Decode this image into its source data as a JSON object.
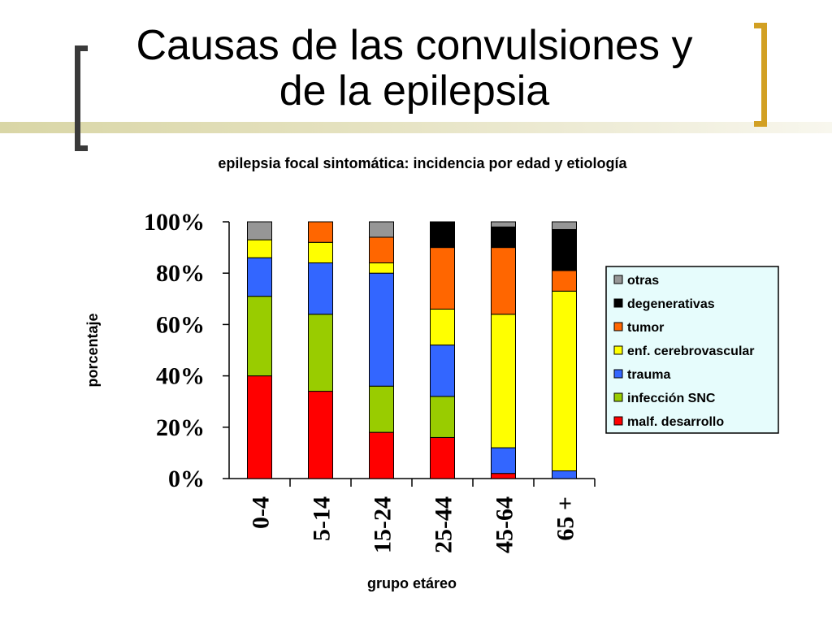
{
  "slide": {
    "title_line1": "Causas de las convulsiones y",
    "title_line2": "de la epilepsia"
  },
  "colors": {
    "left_bracket": "#3a3a3a",
    "right_bracket": "#d2a023",
    "legend_background": "#e6fcfc"
  },
  "chart_data": {
    "type": "bar",
    "stacked": true,
    "title": "epilepsia focal sintomática: incidencia por edad y etiología",
    "xlabel": "grupo etáreo",
    "ylabel": "porcentaje",
    "ylim": [
      0,
      100
    ],
    "yticks": [
      "0%",
      "20%",
      "40%",
      "60%",
      "80%",
      "100%"
    ],
    "categories": [
      "0-4",
      "5-14",
      "15-24",
      "25-44",
      "45-64",
      "65 +"
    ],
    "legend_position": "right",
    "series": [
      {
        "name": "malf. desarrollo",
        "color": "#ff0000",
        "values": [
          40,
          34,
          18,
          16,
          2,
          0
        ]
      },
      {
        "name": "infección SNC",
        "color": "#99cc00",
        "values": [
          31,
          30,
          18,
          16,
          0,
          0
        ]
      },
      {
        "name": "trauma",
        "color": "#3366ff",
        "values": [
          15,
          20,
          44,
          20,
          10,
          3
        ]
      },
      {
        "name": "enf. cerebrovascular",
        "color": "#ffff00",
        "values": [
          7,
          8,
          4,
          14,
          52,
          70
        ]
      },
      {
        "name": "tumor",
        "color": "#ff6600",
        "values": [
          0,
          8,
          10,
          24,
          26,
          8
        ]
      },
      {
        "name": "degenerativas",
        "color": "#000000",
        "values": [
          0,
          0,
          0,
          10,
          8,
          16
        ]
      },
      {
        "name": "otras",
        "color": "#969696",
        "values": [
          7,
          0,
          6,
          0,
          2,
          3
        ]
      }
    ]
  }
}
